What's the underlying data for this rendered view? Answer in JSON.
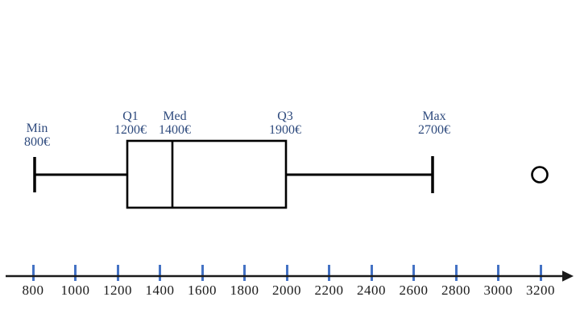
{
  "chart_data": {
    "type": "boxplot",
    "title": "",
    "orientation": "horizontal",
    "unit": "€",
    "stats": {
      "min": 800,
      "q1": 1200,
      "median": 1400,
      "q3": 1900,
      "max": 2700
    },
    "outliers": [
      3200
    ],
    "annotations": {
      "min": {
        "label": "Min",
        "value": "800€"
      },
      "q1": {
        "label": "Q1",
        "value": "1200€"
      },
      "med": {
        "label": "Med",
        "value": "1400€"
      },
      "q3": {
        "label": "Q3",
        "value": "1900€"
      },
      "max": {
        "label": "Max",
        "value": "2700€"
      }
    },
    "axis": {
      "ticks": [
        800,
        1000,
        1200,
        1400,
        1600,
        1800,
        2000,
        2200,
        2400,
        2600,
        2800,
        3000,
        3200
      ],
      "range": [
        800,
        3200
      ],
      "tick_step": 200,
      "arrow_right": true
    },
    "colors": {
      "annotation_text": "#2e4a7d",
      "tick_mark": "#4472c4",
      "axis_line": "#1a1a1a",
      "tick_label": "#1a1a1a",
      "shape_stroke": "#000000",
      "box_fill": "#ffffff",
      "background": "#ffffff"
    },
    "legend": false,
    "grid": false
  }
}
